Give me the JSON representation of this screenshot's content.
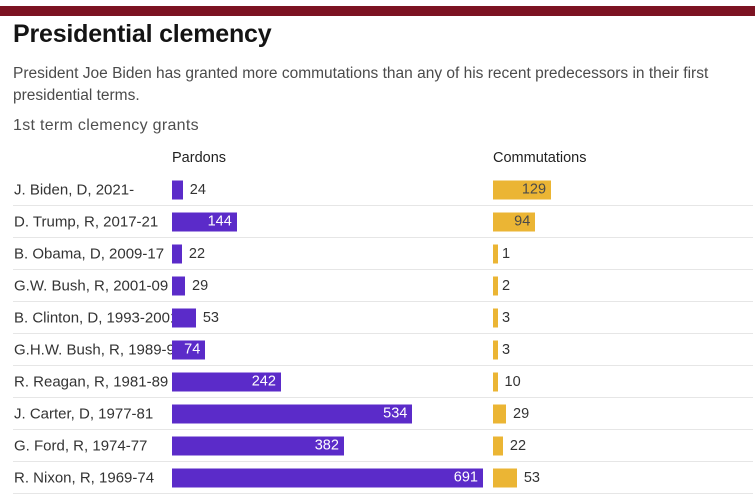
{
  "page": {
    "top_bar_color": "#7c1322",
    "background": "#ffffff"
  },
  "header": {
    "title": "Presidential clemency",
    "subtitle": "President Joe Biden has granted more commutations than any of his recent predecessors in their first presidential terms."
  },
  "chart_data": {
    "type": "bar",
    "orientation": "horizontal",
    "title": "1st term clemency grants",
    "categories": [
      "J. Biden, D, 2021-",
      "D. Trump, R, 2017-21",
      "B. Obama, D, 2009-17",
      "G.W. Bush, R, 2001-09",
      "B. Clinton, D, 1993-2001",
      "G.H.W. Bush, R, 1989-93",
      "R. Reagan, R, 1981-89",
      "J. Carter, D, 1977-81",
      "G. Ford, R, 1974-77",
      "R. Nixon, R, 1969-74"
    ],
    "series": [
      {
        "name": "Pardons",
        "color": "#5b2bc9",
        "values": [
          24,
          144,
          22,
          29,
          53,
          74,
          242,
          534,
          382,
          691
        ],
        "label_inside_min": 74,
        "inside_label_color": "#ffffff"
      },
      {
        "name": "Commutations",
        "color": "#ebb534",
        "values": [
          129,
          94,
          1,
          2,
          3,
          3,
          10,
          29,
          22,
          53
        ],
        "label_inside_min": 94,
        "inside_label_color": "#4a4a4a"
      }
    ],
    "xlim": [
      0,
      691
    ],
    "grid": false,
    "value_labels": true,
    "legend_position": "column-headers"
  }
}
